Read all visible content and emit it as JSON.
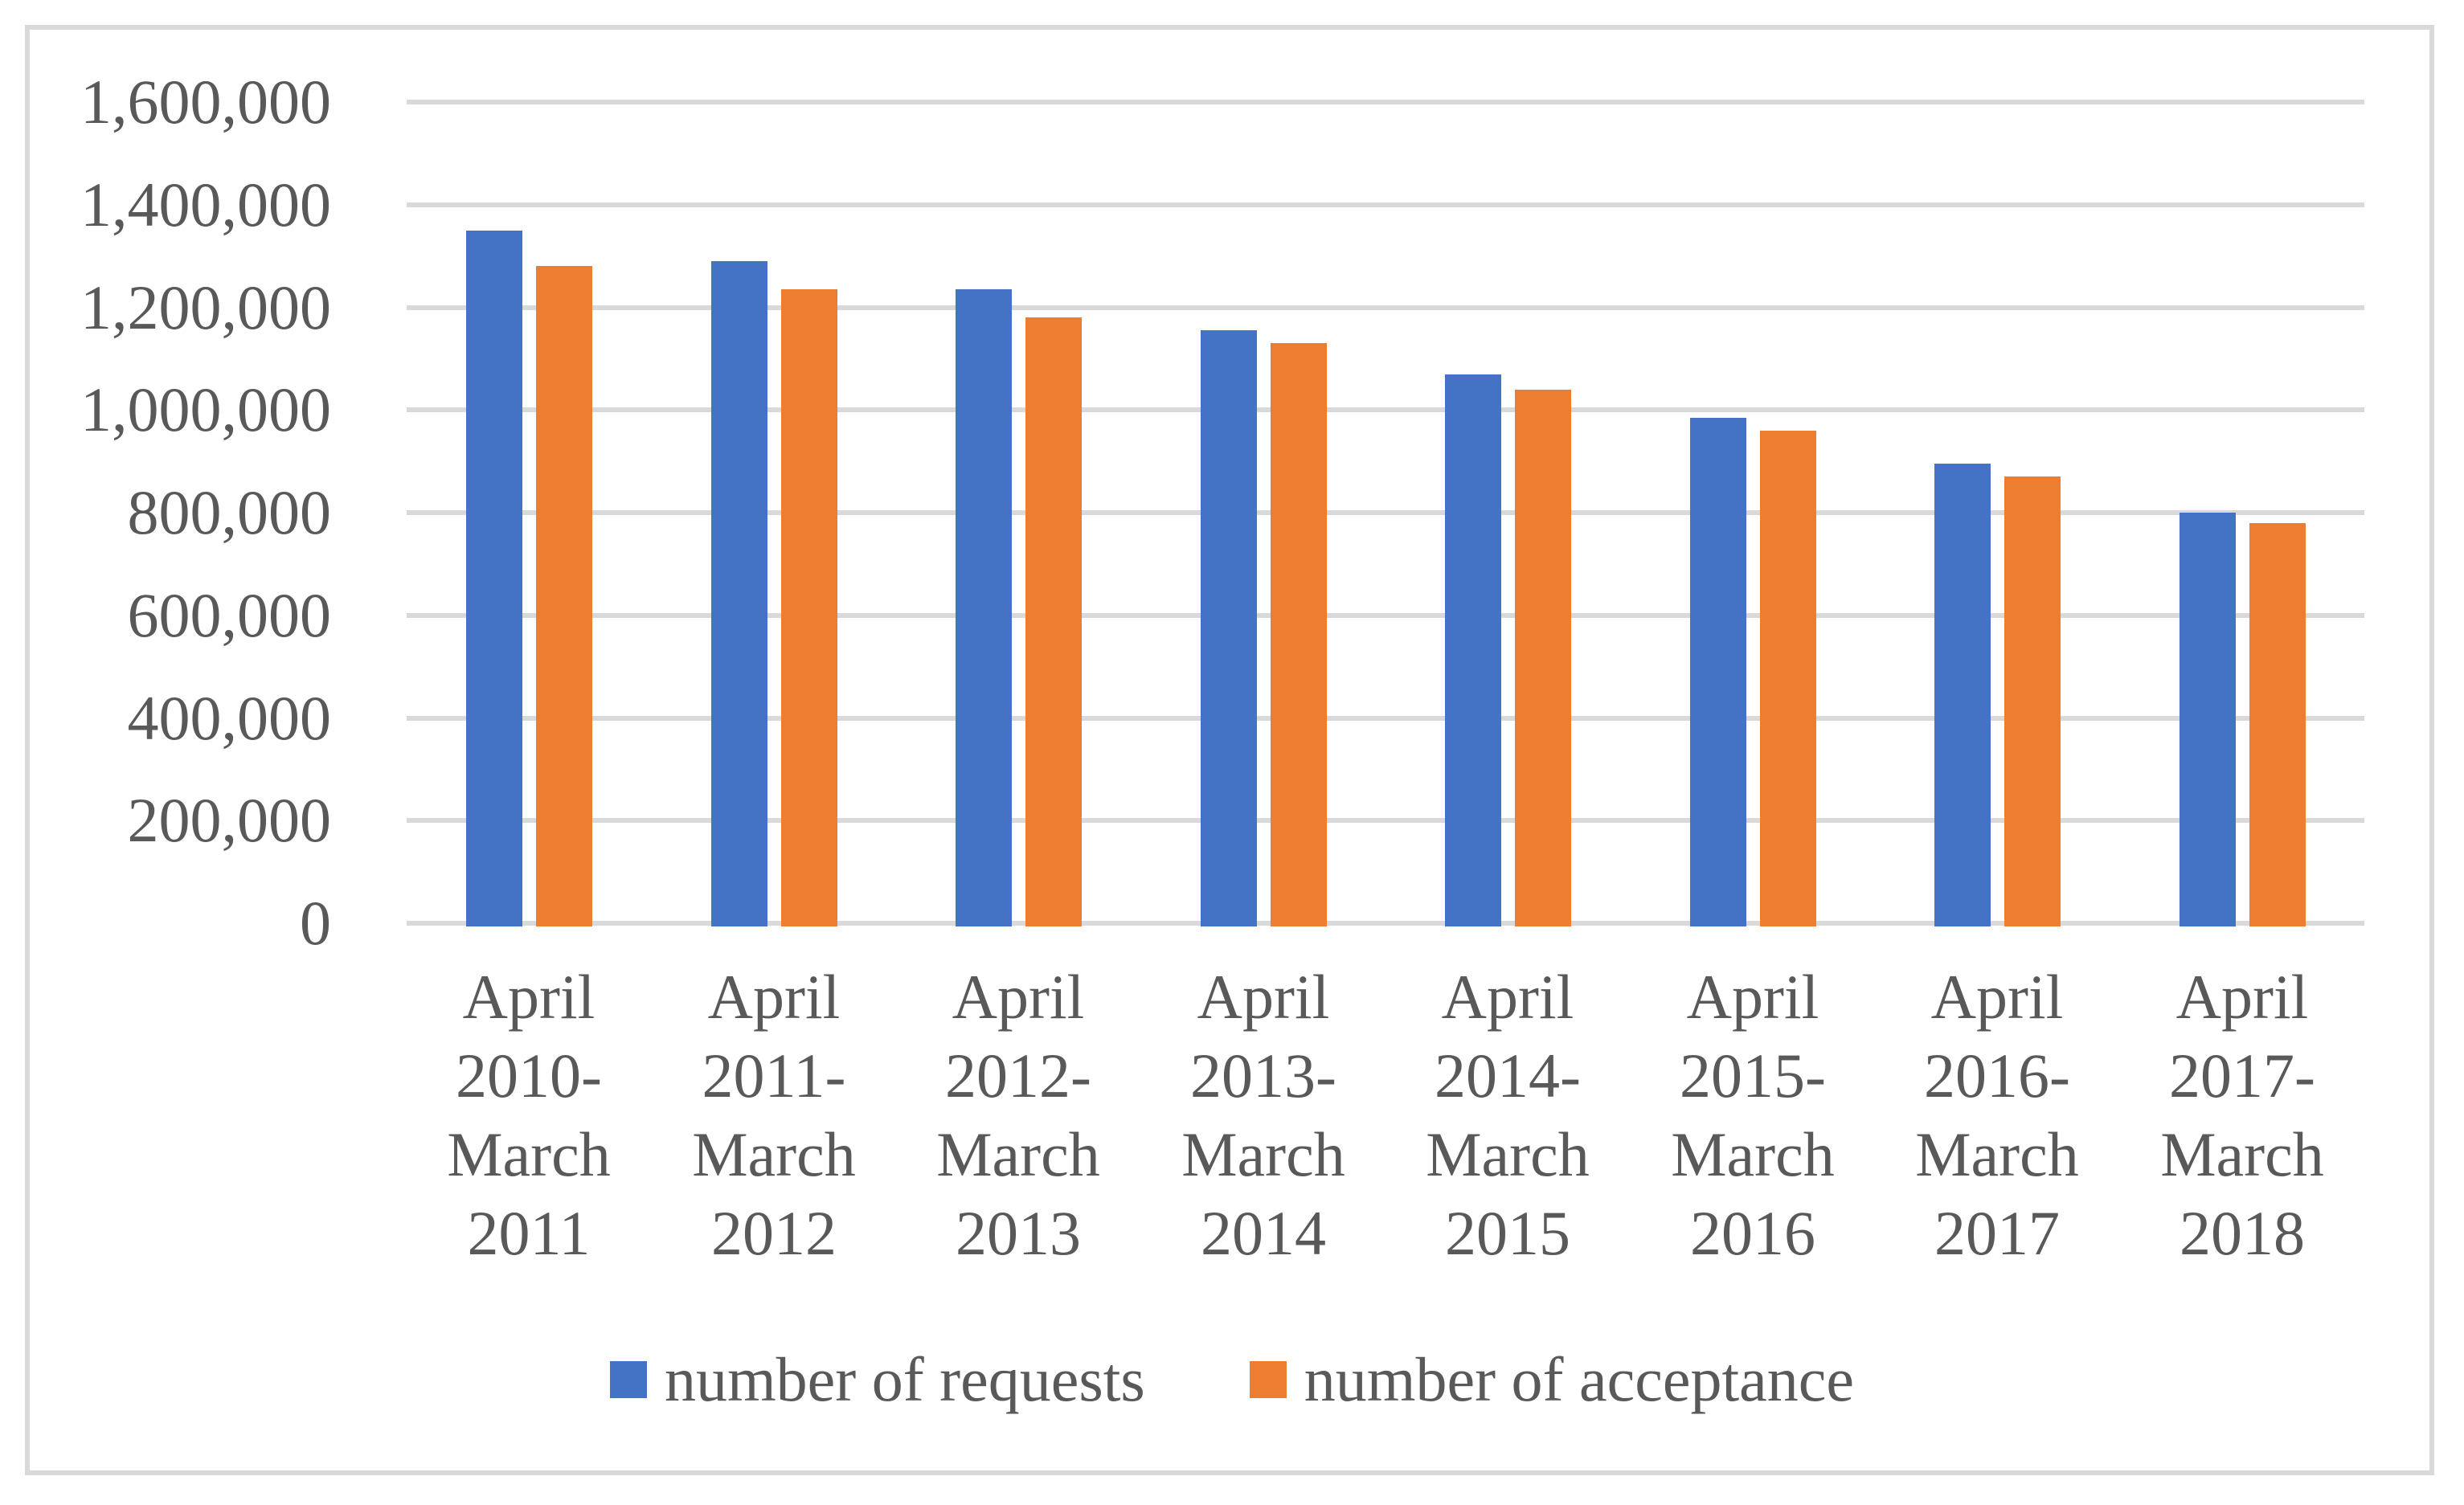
{
  "chart_data": {
    "type": "bar",
    "title": "",
    "xlabel": "",
    "ylabel": "",
    "categories": [
      "April 2010-March 2011",
      "April 2011-March 2012",
      "April 2012-March 2013",
      "April 2013-March 2014",
      "April 2014-March 2015",
      "April 2015-March 2016",
      "April 2016-March 2017",
      "April 2017-March 2018"
    ],
    "series": [
      {
        "name": "number of requests",
        "color": "#4472C4",
        "values": [
          1350000,
          1290000,
          1235000,
          1155000,
          1070000,
          985000,
          895000,
          800000
        ]
      },
      {
        "name": "number of acceptance",
        "color": "#ED7D31",
        "values": [
          1280000,
          1235000,
          1180000,
          1130000,
          1040000,
          960000,
          870000,
          780000
        ]
      }
    ],
    "ylim": [
      0,
      1600000
    ],
    "ytick_step": 200000,
    "ytick_labels_top_down": [
      "1,600,000",
      "1,400,000",
      "1,200,000",
      "1,000,000",
      "800,000",
      "600,000",
      "400,000",
      "200,000",
      "0"
    ],
    "grid": true,
    "legend_position": "bottom",
    "colors": {
      "gridline": "#d9d9d9",
      "axis_text": "#595959",
      "frame_border": "#d9d9d9",
      "background": "#ffffff"
    }
  }
}
